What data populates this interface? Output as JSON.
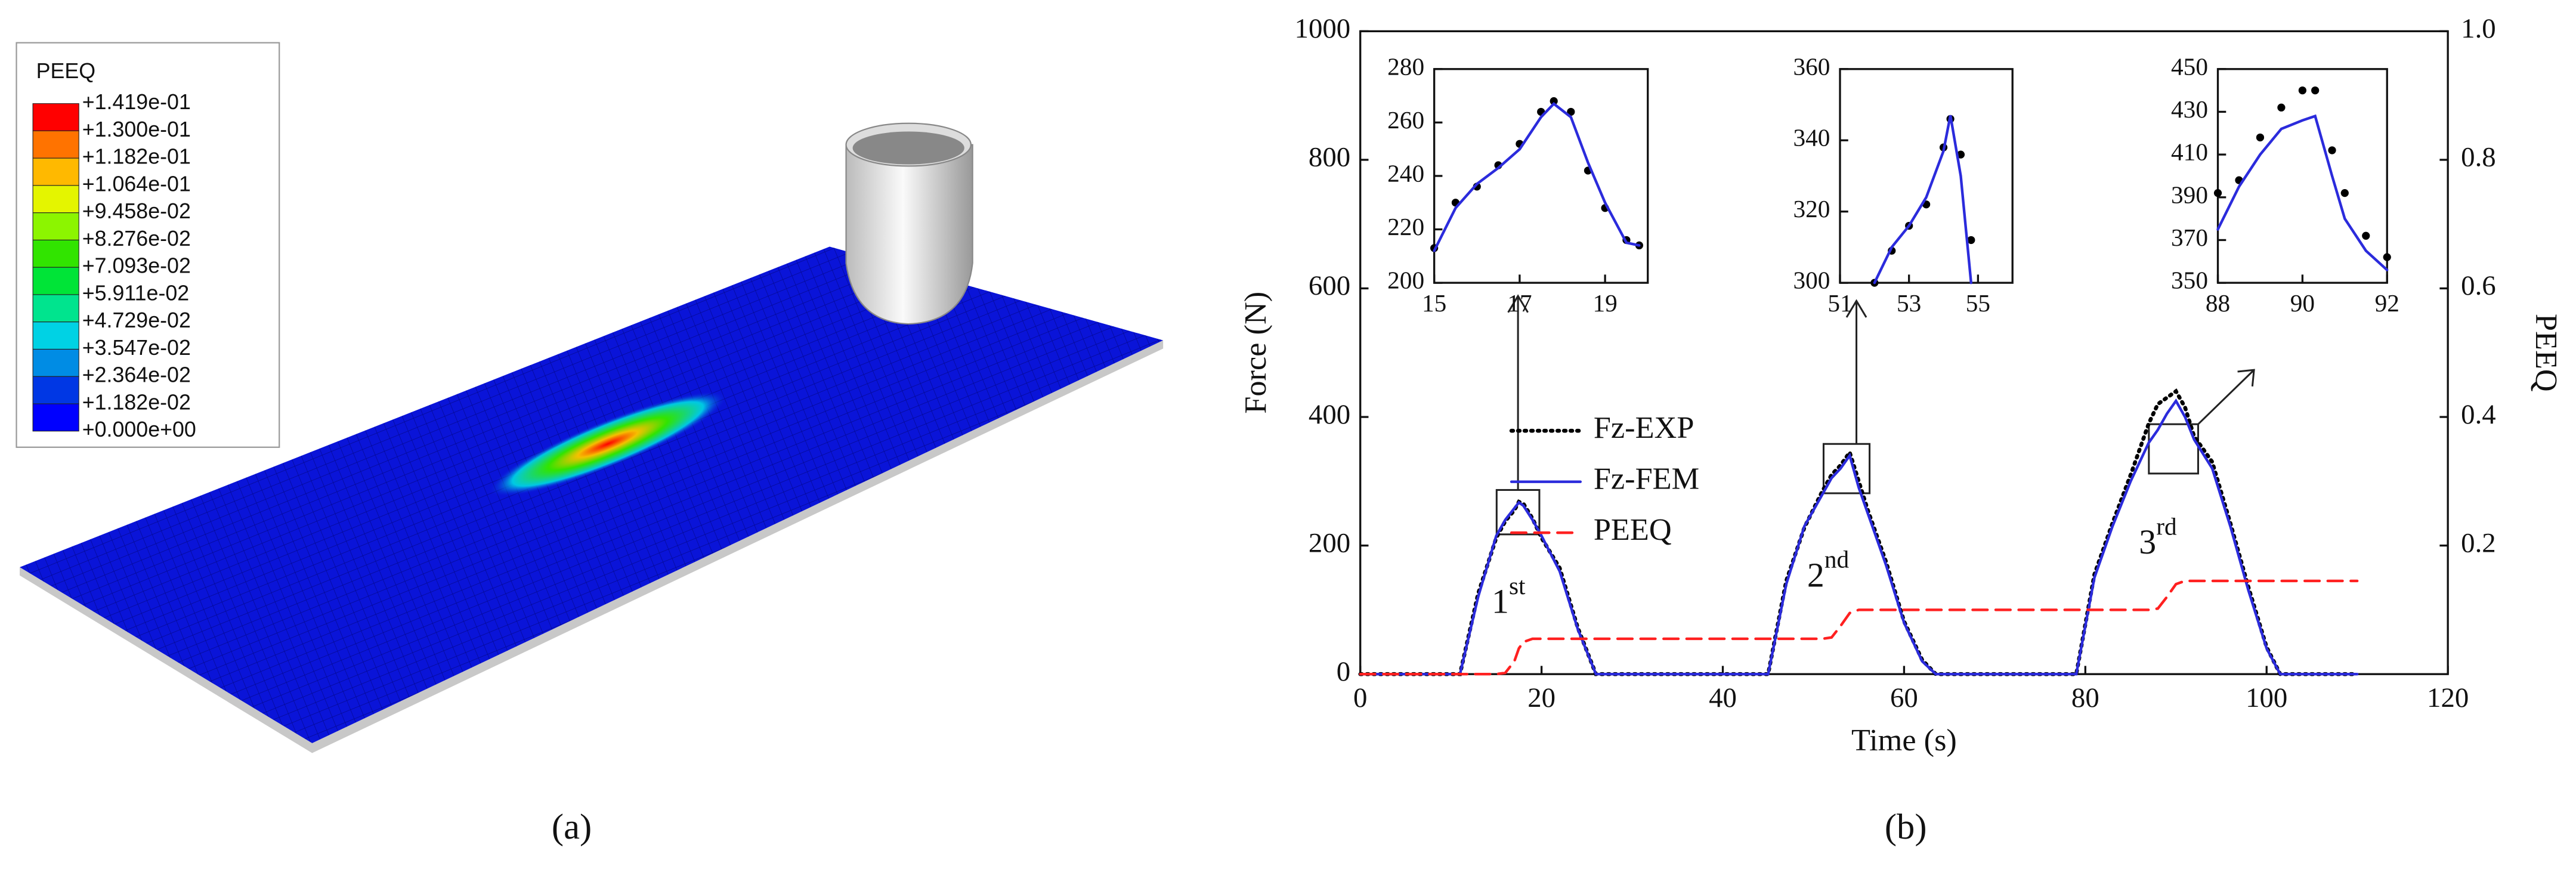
{
  "panel_a": {
    "legend_title": "PEEQ",
    "legend_labels": [
      "+1.419e-01",
      "+1.300e-01",
      "+1.182e-01",
      "+1.064e-01",
      "+9.458e-02",
      "+8.276e-02",
      "+7.093e-02",
      "+5.911e-02",
      "+4.729e-02",
      "+3.547e-02",
      "+2.364e-02",
      "+1.182e-02",
      "+0.000e+00"
    ],
    "colors": [
      "#ff0000",
      "#ff7300",
      "#ffb900",
      "#e4f500",
      "#8cf500",
      "#31e400",
      "#00e437",
      "#00e48e",
      "#00d2e4",
      "#008ce4",
      "#0037e4",
      "#0000ff"
    ]
  },
  "captions": [
    "(a)",
    "(b)"
  ],
  "chart_data": [
    {
      "type": "line",
      "xlabel": "Time (s)",
      "ylabel": "Force (N)",
      "y2label": "PEEQ",
      "x": [
        0,
        5,
        10,
        11,
        13,
        15,
        16,
        17,
        17.5,
        18,
        19,
        20,
        22,
        24,
        26,
        30,
        40,
        45,
        47,
        49,
        51,
        52,
        53,
        54,
        55,
        56,
        58,
        60,
        62,
        63.5,
        70,
        79,
        81,
        83,
        85,
        87,
        88,
        89,
        90,
        91,
        92,
        94,
        96,
        98,
        100,
        101.5,
        105,
        110
      ],
      "series": [
        {
          "name": "Fz-EXP",
          "color": "#000000",
          "style": "dotted",
          "values": [
            0,
            0,
            0,
            0,
            125,
            212,
            238,
            255,
            268,
            265,
            242,
            212,
            165,
            72,
            0,
            0,
            0,
            0,
            145,
            228,
            285,
            310,
            325,
            345,
            300,
            255,
            175,
            82,
            22,
            0,
            0,
            0,
            155,
            235,
            310,
            390,
            420,
            430,
            440,
            415,
            370,
            330,
            235,
            135,
            42,
            0,
            0,
            0
          ]
        },
        {
          "name": "Fz-FEM",
          "color": "#2b2bdc",
          "style": "solid",
          "values": [
            0,
            0,
            0,
            0,
            120,
            215,
            240,
            258,
            267,
            262,
            240,
            215,
            160,
            70,
            0,
            0,
            0,
            0,
            140,
            230,
            280,
            305,
            320,
            340,
            290,
            250,
            170,
            80,
            20,
            0,
            0,
            0,
            150,
            230,
            300,
            360,
            380,
            405,
            425,
            400,
            365,
            320,
            230,
            130,
            40,
            0,
            0,
            0
          ]
        },
        {
          "name": "PEEQ",
          "color": "#ff2020",
          "style": "dashed",
          "axis": "y2",
          "values": [
            0,
            0,
            0,
            0,
            0,
            0,
            0.002,
            0.02,
            0.04,
            0.05,
            0.055,
            0.055,
            0.055,
            0.055,
            0.055,
            0.055,
            0.055,
            0.055,
            0.055,
            0.055,
            0.055,
            0.057,
            0.075,
            0.095,
            0.1,
            0.1,
            0.1,
            0.1,
            0.1,
            0.1,
            0.1,
            0.1,
            0.1,
            0.1,
            0.1,
            0.1,
            0.102,
            0.12,
            0.14,
            0.145,
            0.145,
            0.145,
            0.145,
            0.145,
            0.145,
            0.145,
            0.145,
            0.145
          ]
        }
      ],
      "xlim": [
        0,
        120
      ],
      "xticks": [
        0,
        20,
        40,
        60,
        80,
        100,
        120
      ],
      "ylim": [
        0,
        1000
      ],
      "yticks": [
        0,
        200,
        400,
        600,
        800,
        1000
      ],
      "y2lim": [
        0,
        1
      ],
      "y2ticks": [
        0.2,
        0.4,
        0.6,
        0.8,
        {
          "value": 1,
          "label": "1.0"
        }
      ],
      "annotations": [
        {
          "base": "1",
          "sup": "st"
        },
        {
          "base": "2",
          "sup": "nd"
        },
        {
          "base": "3",
          "sup": "rd"
        }
      ]
    },
    {
      "type": "line",
      "x": [
        15,
        15.5,
        16,
        16.5,
        17,
        17.5,
        17.8,
        18.2,
        18.6,
        19,
        19.5,
        19.8
      ],
      "series": [
        {
          "color": "#000000",
          "style": "dots",
          "values": [
            213,
            230,
            236,
            244,
            252,
            264,
            268,
            264,
            242,
            228,
            216,
            214
          ]
        },
        {
          "color": "#2b2bdc",
          "style": "solid",
          "values": [
            212,
            228,
            237,
            243,
            250,
            262,
            267,
            262,
            245,
            230,
            215,
            214
          ]
        }
      ],
      "xlim": [
        15,
        20
      ],
      "xticks": [
        15,
        17,
        19
      ],
      "ylim": [
        200,
        280
      ],
      "yticks": [
        200,
        220,
        240,
        260,
        280
      ]
    },
    {
      "type": "line",
      "x": [
        52,
        52.5,
        53,
        53.5,
        54,
        54.2,
        54.5,
        54.8
      ],
      "series": [
        {
          "color": "#000000",
          "style": "dots",
          "values": [
            300,
            309,
            316,
            322,
            338,
            346,
            336,
            312
          ]
        },
        {
          "color": "#2b2bdc",
          "style": "solid",
          "values": [
            300,
            310,
            316,
            324,
            337,
            347,
            330,
            300
          ]
        }
      ],
      "xlim": [
        51,
        56
      ],
      "xticks": [
        51,
        53,
        55
      ],
      "ylim": [
        300,
        360
      ],
      "yticks": [
        300,
        320,
        340,
        360
      ]
    },
    {
      "type": "line",
      "x": [
        88,
        88.5,
        89,
        89.5,
        90,
        90.3,
        90.7,
        91,
        91.5,
        92
      ],
      "series": [
        {
          "color": "#000000",
          "style": "dots",
          "values": [
            392,
            398,
            418,
            432,
            440,
            440,
            412,
            392,
            372,
            362
          ]
        },
        {
          "color": "#2b2bdc",
          "style": "solid",
          "values": [
            375,
            395,
            410,
            422,
            426,
            428,
            400,
            380,
            365,
            356
          ]
        }
      ],
      "xlim": [
        88,
        92
      ],
      "xticks": [
        88,
        90,
        92
      ],
      "ylim": [
        350,
        450
      ],
      "yticks": [
        350,
        370,
        390,
        410,
        430,
        450
      ]
    }
  ]
}
